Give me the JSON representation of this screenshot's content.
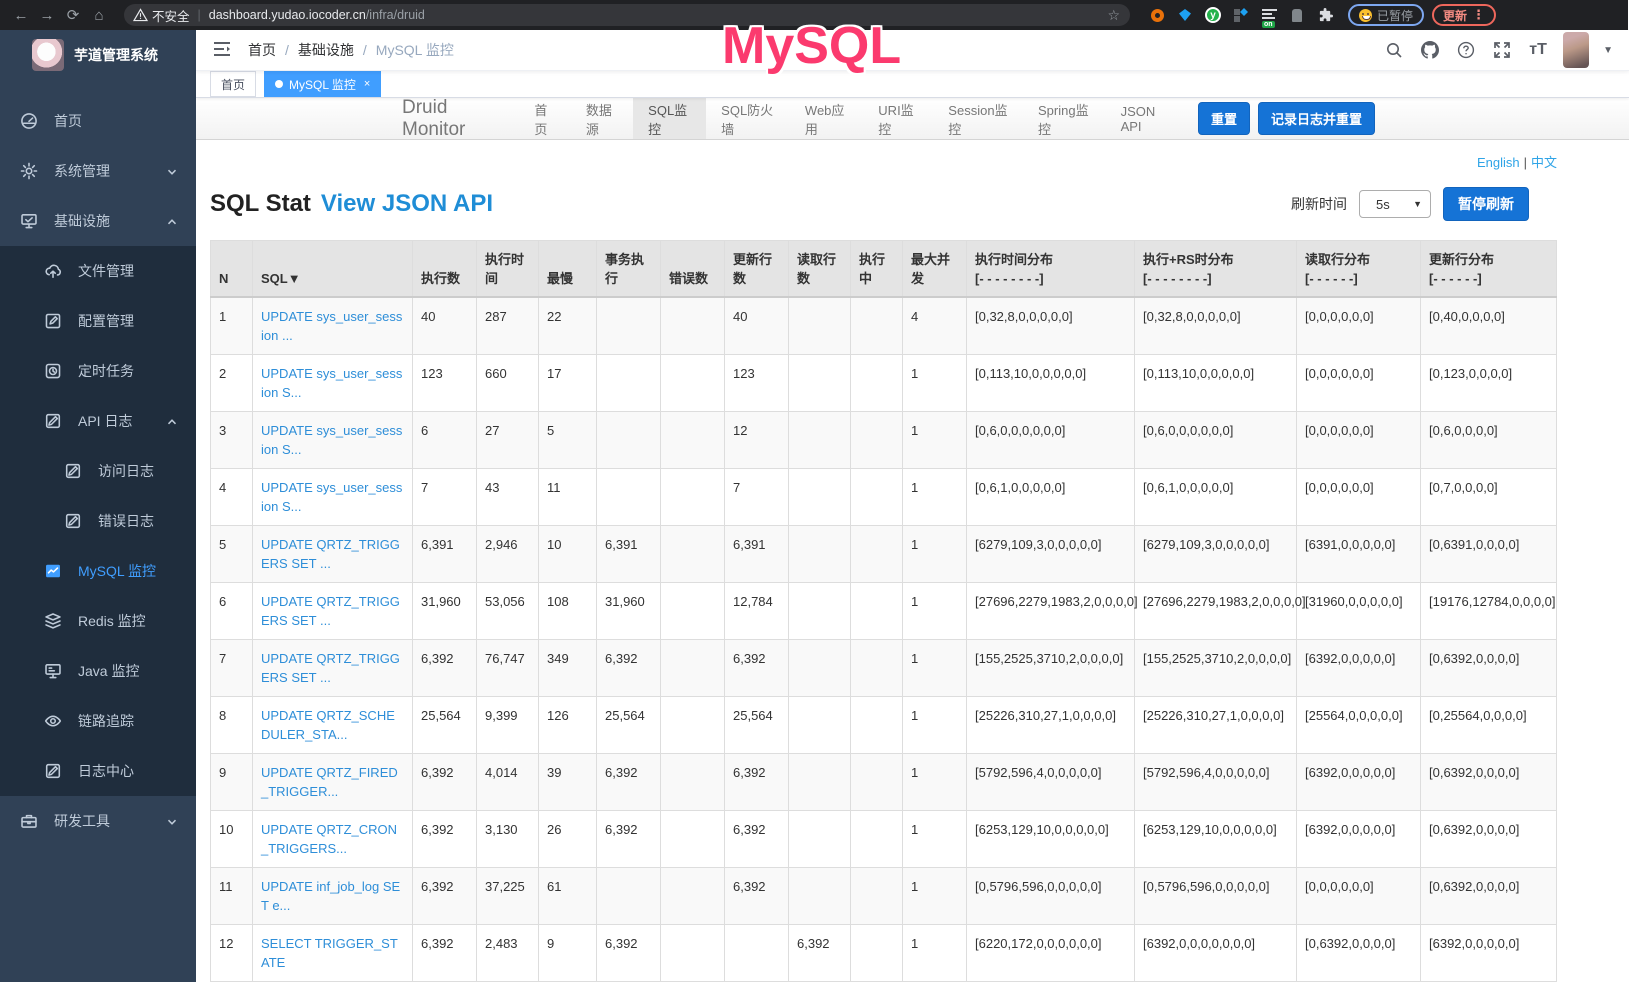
{
  "annotation": "MySQL",
  "browser": {
    "security_label": "不安全",
    "url_host": "dashboard.yudao.iocoder.cn",
    "url_path": "/infra/druid",
    "extension_on_badge": "on",
    "paused_label": "已暂停",
    "update_label": "更新",
    "kebab": "⋮",
    "back_icon": "←",
    "forward_icon": "→",
    "reload_icon": "⟳",
    "home_icon": "⌂",
    "star_icon": "☆"
  },
  "sidebar": {
    "app_title": "芋道管理系统",
    "items": [
      {
        "icon": "dashboard",
        "label": "首页",
        "level": 1
      },
      {
        "icon": "gear",
        "label": "系统管理",
        "level": 1,
        "chevron": "down"
      },
      {
        "icon": "infra",
        "label": "基础设施",
        "level": 1,
        "chevron": "up"
      },
      {
        "icon": "upload",
        "label": "文件管理",
        "level": 2,
        "dark": true
      },
      {
        "icon": "edit",
        "label": "配置管理",
        "level": 2,
        "dark": true
      },
      {
        "icon": "timer",
        "label": "定时任务",
        "level": 2,
        "dark": true
      },
      {
        "icon": "log",
        "label": "API 日志",
        "level": 2,
        "dark": true,
        "chevron": "up"
      },
      {
        "icon": "log",
        "label": "访问日志",
        "level": 3,
        "dark": true
      },
      {
        "icon": "log",
        "label": "错误日志",
        "level": 3,
        "dark": true
      },
      {
        "icon": "mysql",
        "label": "MySQL 监控",
        "level": 2,
        "dark": true,
        "active": true
      },
      {
        "icon": "redis",
        "label": "Redis 监控",
        "level": 2,
        "dark": true
      },
      {
        "icon": "java",
        "label": "Java 监控",
        "level": 2,
        "dark": true
      },
      {
        "icon": "eye",
        "label": "链路追踪",
        "level": 2,
        "dark": true
      },
      {
        "icon": "log",
        "label": "日志中心",
        "level": 2,
        "dark": true
      },
      {
        "icon": "toolbox",
        "label": "研发工具",
        "level": 1,
        "chevron": "down"
      }
    ]
  },
  "header": {
    "breadcrumb": [
      "首页",
      "基础设施",
      "MySQL 监控"
    ]
  },
  "tags": [
    {
      "label": "首页",
      "active": false
    },
    {
      "label": "MySQL 监控",
      "active": true,
      "closable": true
    }
  ],
  "druid": {
    "brand": "Druid Monitor",
    "nav": [
      "首页",
      "数据源",
      "SQL监控",
      "SQL防火墙",
      "Web应用",
      "URI监控",
      "Session监控",
      "Spring监控",
      "JSON API"
    ],
    "active_nav": "SQL监控",
    "reset_label": "重置",
    "log_reset_label": "记录日志并重置"
  },
  "content": {
    "lang_links": [
      "English",
      "中文"
    ],
    "title": "SQL Stat",
    "title_link": "View JSON API",
    "refresh_label": "刷新时间",
    "refresh_value": "5s",
    "pause_button": "暂停刷新"
  },
  "table": {
    "header_keys": [
      "n",
      "sql",
      "exec-count",
      "exec-time",
      "max-time",
      "tx-exec",
      "error-count",
      "update-rows",
      "fetch-rows",
      "running",
      "max-concurrent",
      "exec-time-dist",
      "exec-rs-dist",
      "fetch-row-dist",
      "update-row-dist"
    ],
    "headers": [
      {
        "label": "N"
      },
      {
        "label": "SQL▼"
      },
      {
        "label": "执行数"
      },
      {
        "label": "执行时间"
      },
      {
        "label": "最慢"
      },
      {
        "label": "事务执行"
      },
      {
        "label": "错误数"
      },
      {
        "label": "更新行数"
      },
      {
        "label": "读取行数"
      },
      {
        "label": "执行中"
      },
      {
        "label": "最大并发"
      },
      {
        "label": "执行时间分布",
        "sub": "[- - - - - - - -]"
      },
      {
        "label": "执行+RS时分布",
        "sub": "[- - - - - - - -]"
      },
      {
        "label": "读取行分布",
        "sub": "[- - - - - -]"
      },
      {
        "label": "更新行分布",
        "sub": "[- - - - - -]"
      }
    ],
    "rows": [
      [
        "1",
        "UPDATE sys_user_session ...",
        "40",
        "287",
        "22",
        "",
        "",
        "40",
        "",
        "",
        "4",
        "[0,32,8,0,0,0,0,0]",
        "[0,32,8,0,0,0,0,0]",
        "[0,0,0,0,0,0]",
        "[0,40,0,0,0,0]"
      ],
      [
        "2",
        "UPDATE sys_user_session S...",
        "123",
        "660",
        "17",
        "",
        "",
        "123",
        "",
        "",
        "1",
        "[0,113,10,0,0,0,0,0]",
        "[0,113,10,0,0,0,0,0]",
        "[0,0,0,0,0,0]",
        "[0,123,0,0,0,0]"
      ],
      [
        "3",
        "UPDATE sys_user_session S...",
        "6",
        "27",
        "5",
        "",
        "",
        "12",
        "",
        "",
        "1",
        "[0,6,0,0,0,0,0,0]",
        "[0,6,0,0,0,0,0,0]",
        "[0,0,0,0,0,0]",
        "[0,6,0,0,0,0]"
      ],
      [
        "4",
        "UPDATE sys_user_session S...",
        "7",
        "43",
        "11",
        "",
        "",
        "7",
        "",
        "",
        "1",
        "[0,6,1,0,0,0,0,0]",
        "[0,6,1,0,0,0,0,0]",
        "[0,0,0,0,0,0]",
        "[0,7,0,0,0,0]"
      ],
      [
        "5",
        "UPDATE QRTZ_TRIGGERS SET ...",
        "6,391",
        "2,946",
        "10",
        "6,391",
        "",
        "6,391",
        "",
        "",
        "1",
        "[6279,109,3,0,0,0,0,0]",
        "[6279,109,3,0,0,0,0,0]",
        "[6391,0,0,0,0,0]",
        "[0,6391,0,0,0,0]"
      ],
      [
        "6",
        "UPDATE QRTZ_TRIGGERS SET ...",
        "31,960",
        "53,056",
        "108",
        "31,960",
        "",
        "12,784",
        "",
        "",
        "1",
        "[27696,2279,1983,2,0,0,0,0]",
        "[27696,2279,1983,2,0,0,0,0]",
        "[31960,0,0,0,0,0]",
        "[19176,12784,0,0,0,0]"
      ],
      [
        "7",
        "UPDATE QRTZ_TRIGGERS SET ...",
        "6,392",
        "76,747",
        "349",
        "6,392",
        "",
        "6,392",
        "",
        "",
        "1",
        "[155,2525,3710,2,0,0,0,0]",
        "[155,2525,3710,2,0,0,0,0]",
        "[6392,0,0,0,0,0]",
        "[0,6392,0,0,0,0]"
      ],
      [
        "8",
        "UPDATE QRTZ_SCHEDULER_STA...",
        "25,564",
        "9,399",
        "126",
        "25,564",
        "",
        "25,564",
        "",
        "",
        "1",
        "[25226,310,27,1,0,0,0,0]",
        "[25226,310,27,1,0,0,0,0]",
        "[25564,0,0,0,0,0]",
        "[0,25564,0,0,0,0]"
      ],
      [
        "9",
        "UPDATE QRTZ_FIRED_TRIGGER...",
        "6,392",
        "4,014",
        "39",
        "6,392",
        "",
        "6,392",
        "",
        "",
        "1",
        "[5792,596,4,0,0,0,0,0]",
        "[5792,596,4,0,0,0,0,0]",
        "[6392,0,0,0,0,0]",
        "[0,6392,0,0,0,0]"
      ],
      [
        "10",
        "UPDATE QRTZ_CRON_TRIGGERS...",
        "6,392",
        "3,130",
        "26",
        "6,392",
        "",
        "6,392",
        "",
        "",
        "1",
        "[6253,129,10,0,0,0,0,0]",
        "[6253,129,10,0,0,0,0,0]",
        "[6392,0,0,0,0,0]",
        "[0,6392,0,0,0,0]"
      ],
      [
        "11",
        "UPDATE inf_job_log SET e...",
        "6,392",
        "37,225",
        "61",
        "",
        "",
        "6,392",
        "",
        "",
        "1",
        "[0,5796,596,0,0,0,0,0]",
        "[0,5796,596,0,0,0,0,0]",
        "[0,0,0,0,0,0]",
        "[0,6392,0,0,0,0]"
      ],
      [
        "12",
        "SELECT TRIGGER_STATE",
        "6,392",
        "2,483",
        "9",
        "6,392",
        "",
        "",
        "6,392",
        "",
        "1",
        "[6220,172,0,0,0,0,0,0]",
        "[6392,0,0,0,0,0,0,0]",
        "[0,6392,0,0,0,0]",
        "[6392,0,0,0,0,0]"
      ]
    ]
  }
}
